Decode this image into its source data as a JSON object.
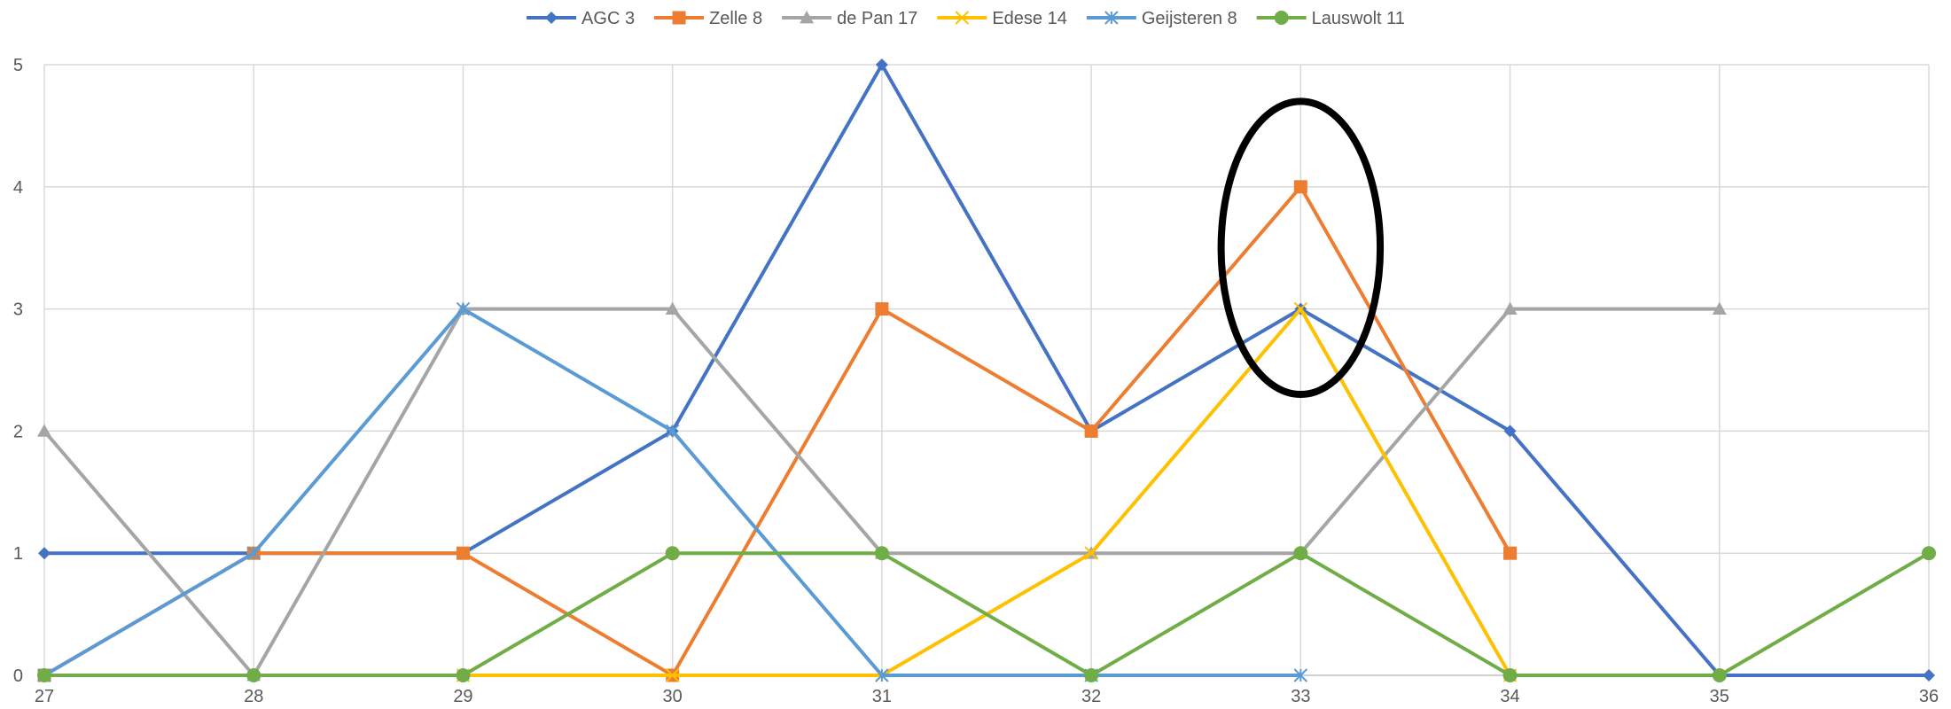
{
  "chart_data": {
    "type": "line",
    "title": "",
    "xlabel": "",
    "ylabel": "",
    "x": [
      27,
      28,
      29,
      30,
      31,
      32,
      33,
      34,
      35,
      36
    ],
    "x_ticks": [
      "27",
      "28",
      "29",
      "30",
      "31",
      "32",
      "33",
      "34",
      "35",
      "36"
    ],
    "ylim": [
      0,
      5
    ],
    "y_ticks": [
      "0",
      "1",
      "2",
      "3",
      "4",
      "5"
    ],
    "grid": true,
    "legend_position": "top",
    "series": [
      {
        "name": "AGC 3",
        "color": "#4472C4",
        "marker": "diamond",
        "values": [
          1,
          1,
          1,
          2,
          5,
          2,
          3,
          2,
          0,
          0
        ]
      },
      {
        "name": "Zelle 8",
        "color": "#ED7D31",
        "marker": "square",
        "values": [
          0,
          1,
          1,
          0,
          3,
          2,
          4,
          1,
          null,
          null
        ]
      },
      {
        "name": "de Pan 17",
        "color": "#A5A5A5",
        "marker": "triangle",
        "values": [
          2,
          0,
          3,
          3,
          1,
          1,
          1,
          3,
          3,
          null
        ]
      },
      {
        "name": "Edese 14",
        "color": "#FFC000",
        "marker": "x",
        "values": [
          null,
          null,
          0,
          0,
          0,
          1,
          3,
          0,
          null,
          null
        ]
      },
      {
        "name": "Geijsteren 8",
        "color": "#5B9BD5",
        "marker": "star",
        "values": [
          0,
          1,
          3,
          2,
          0,
          0,
          0,
          null,
          null,
          null
        ]
      },
      {
        "name": "Lauswolt 11",
        "color": "#70AD47",
        "marker": "circle",
        "values": [
          0,
          0,
          0,
          1,
          1,
          0,
          1,
          0,
          0,
          1
        ]
      }
    ],
    "annotations": [
      {
        "type": "ellipse",
        "x": 33,
        "y": 3.5,
        "rx": 0.38,
        "ry": 1.2,
        "color": "#000000"
      }
    ]
  }
}
